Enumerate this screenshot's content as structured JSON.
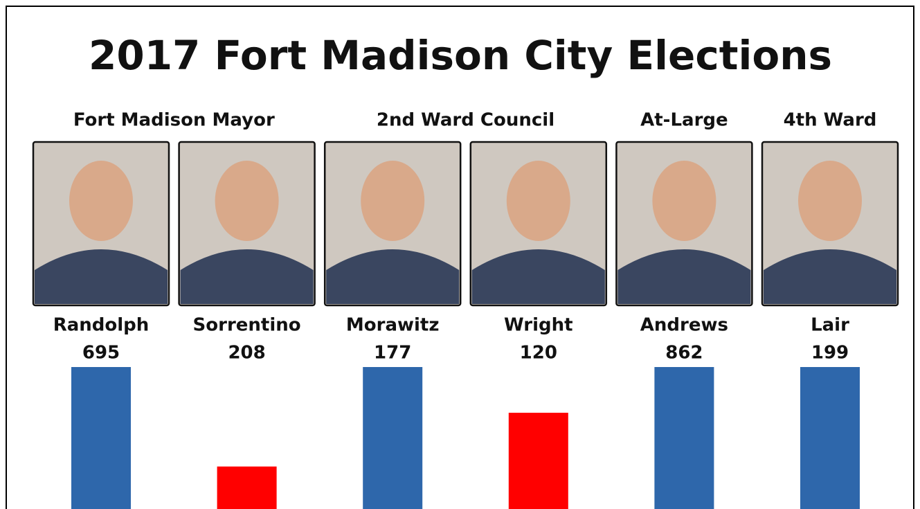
{
  "title": "2017 Fort Madison City Elections",
  "races": [
    {
      "title": "Fort Madison Mayor",
      "candidates": [
        {
          "name": "Randolph",
          "votes": 695,
          "color": "#2e67ab"
        },
        {
          "name": "Sorrentino",
          "votes": 208,
          "color": "#ff0000"
        }
      ]
    },
    {
      "title": "2nd Ward Council",
      "candidates": [
        {
          "name": "Morawitz",
          "votes": 177,
          "color": "#2e67ab"
        },
        {
          "name": "Wright",
          "votes": 120,
          "color": "#ff0000"
        }
      ]
    },
    {
      "title": "At-Large",
      "candidates": [
        {
          "name": "Andrews",
          "votes": 862,
          "color": "#2e67ab"
        }
      ]
    },
    {
      "title": "4th Ward",
      "candidates": [
        {
          "name": "Lair",
          "votes": 199,
          "color": "#2e67ab"
        }
      ]
    }
  ]
}
